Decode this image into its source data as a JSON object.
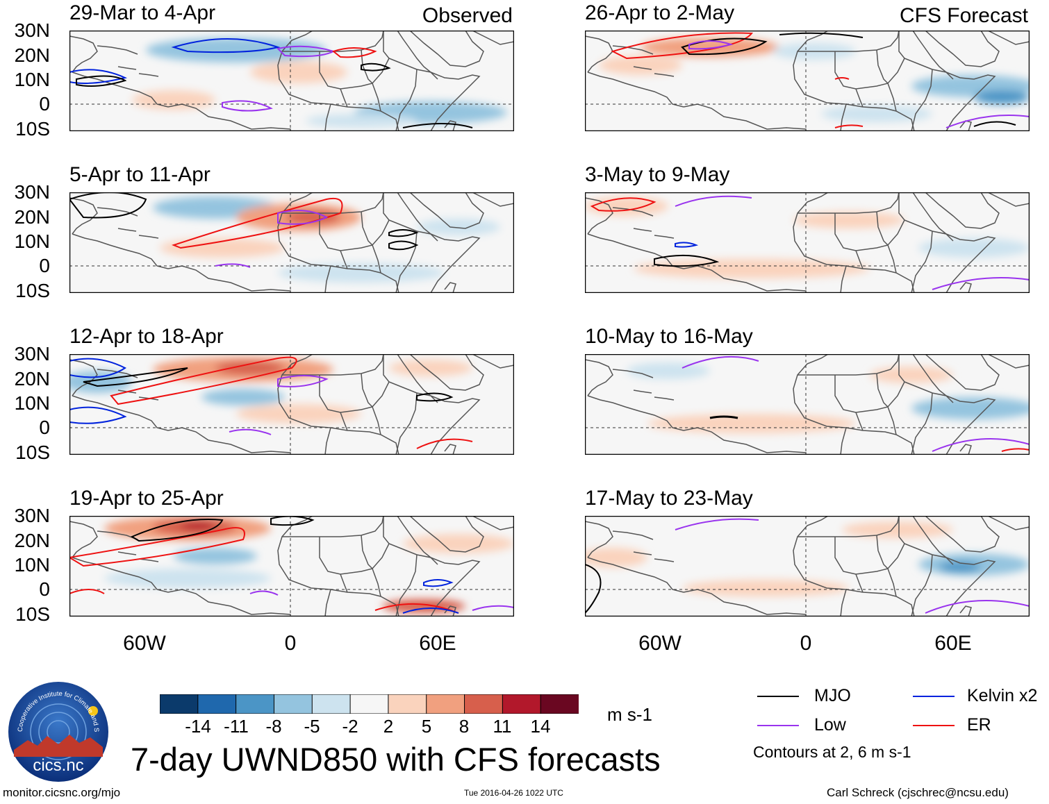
{
  "headers": {
    "left_tag": "Observed",
    "right_tag": "CFS Forecast"
  },
  "panels_left": [
    {
      "title": "29-Mar to 4-Apr"
    },
    {
      "title": "5-Apr to 11-Apr"
    },
    {
      "title": "12-Apr to 18-Apr"
    },
    {
      "title": "19-Apr to 25-Apr"
    }
  ],
  "panels_right": [
    {
      "title": "26-Apr to 2-May"
    },
    {
      "title": "3-May to 9-May"
    },
    {
      "title": "10-May to 16-May"
    },
    {
      "title": "17-May to 23-May"
    }
  ],
  "lat_labels": [
    "30N",
    "20N",
    "10N",
    "0",
    "10S"
  ],
  "lon_labels": [
    "60W",
    "0",
    "60E"
  ],
  "colorbar": {
    "ticks": [
      "-14",
      "-11",
      "-8",
      "-5",
      "-2",
      "2",
      "5",
      "8",
      "11",
      "14"
    ],
    "colors": [
      "#0b3a6b",
      "#1f68ad",
      "#4b95c6",
      "#94c4df",
      "#cde3ef",
      "#f6f6f6",
      "#fad3bd",
      "#f1a07f",
      "#d75f4c",
      "#b2182b",
      "#6a0721"
    ],
    "units": "m s-1"
  },
  "legend": {
    "items": [
      {
        "label": "MJO",
        "color": "#000000"
      },
      {
        "label": "Kelvin x2",
        "color": "#0022dd"
      },
      {
        "label": "Low",
        "color": "#9933ee"
      },
      {
        "label": "ER",
        "color": "#ee1111"
      }
    ],
    "note": "Contours at 2, 6 m s-1"
  },
  "logo": {
    "ring_text": "Cooperative Institute for Climate and Satellites",
    "name": "cics.nc"
  },
  "main_title": "7-day UWND850 with CFS forecasts",
  "footer": {
    "url": "monitor.cicsnc.org/mjo",
    "timestamp": "Tue 2016-04-26 1022 UTC",
    "author": "Carl Schreck (cjschrec@ncsu.edu)"
  }
}
